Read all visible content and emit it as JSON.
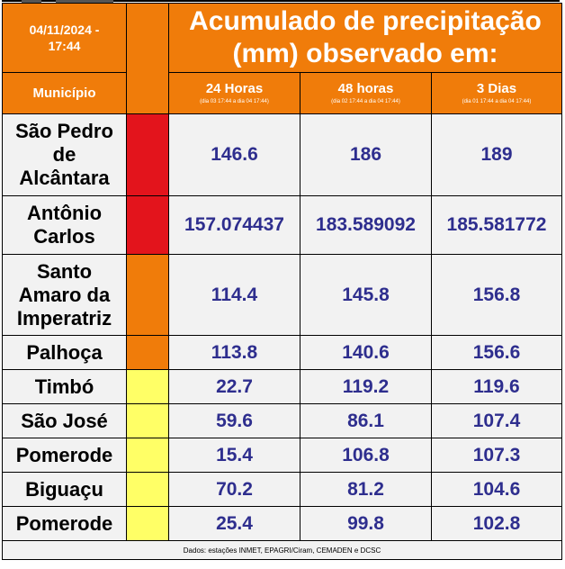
{
  "header": {
    "date_line1": "04/11/2024 -",
    "date_line2": "17:44",
    "title_line1": "Acumulado de precipitação",
    "title_line2": "(mm) observado em:",
    "municipio_label": "Município",
    "periods": [
      {
        "label": "24 Horas",
        "range": "(dia 03 17:44 a dia 04 17:44)"
      },
      {
        "label": "48 horas",
        "range": "(dia 02 17:44 a dia 04 17:44)"
      },
      {
        "label": "3 Dias",
        "range": "(dia 01 17:44 a dia 04 17:44)"
      }
    ]
  },
  "colors": {
    "header_orange": "#f07c0a",
    "alert_red": "#e3141c",
    "alert_orange": "#f07c0a",
    "alert_yellow": "#ffff66",
    "value_blue": "#2e2e8e"
  },
  "rows": [
    {
      "name_lines": [
        "São Pedro",
        "de",
        "Alcântara"
      ],
      "status": "red",
      "v24": "146.6",
      "v48": "186",
      "v3d": "189"
    },
    {
      "name_lines": [
        "Antônio",
        "Carlos"
      ],
      "status": "red",
      "v24": "157.074437",
      "v48": "183.589092",
      "v3d": "185.581772"
    },
    {
      "name_lines": [
        "Santo",
        "Amaro da",
        "Imperatriz"
      ],
      "status": "orange",
      "v24": "114.4",
      "v48": "145.8",
      "v3d": "156.8"
    },
    {
      "name_lines": [
        "Palhoça"
      ],
      "status": "orange",
      "v24": "113.8",
      "v48": "140.6",
      "v3d": "156.6"
    },
    {
      "name_lines": [
        "Timbó"
      ],
      "status": "yellow",
      "v24": "22.7",
      "v48": "119.2",
      "v3d": "119.6"
    },
    {
      "name_lines": [
        "São José"
      ],
      "status": "yellow",
      "v24": "59.6",
      "v48": "86.1",
      "v3d": "107.4"
    },
    {
      "name_lines": [
        "Pomerode"
      ],
      "status": "yellow",
      "v24": "15.4",
      "v48": "106.8",
      "v3d": "107.3"
    },
    {
      "name_lines": [
        "Biguaçu"
      ],
      "status": "yellow",
      "v24": "70.2",
      "v48": "81.2",
      "v3d": "104.6"
    },
    {
      "name_lines": [
        "Pomerode"
      ],
      "status": "yellow",
      "v24": "25.4",
      "v48": "99.8",
      "v3d": "102.8"
    }
  ],
  "footer": "Dados: estações INMET, EPAGRI/Ciram, CEMADEN e DCSC"
}
